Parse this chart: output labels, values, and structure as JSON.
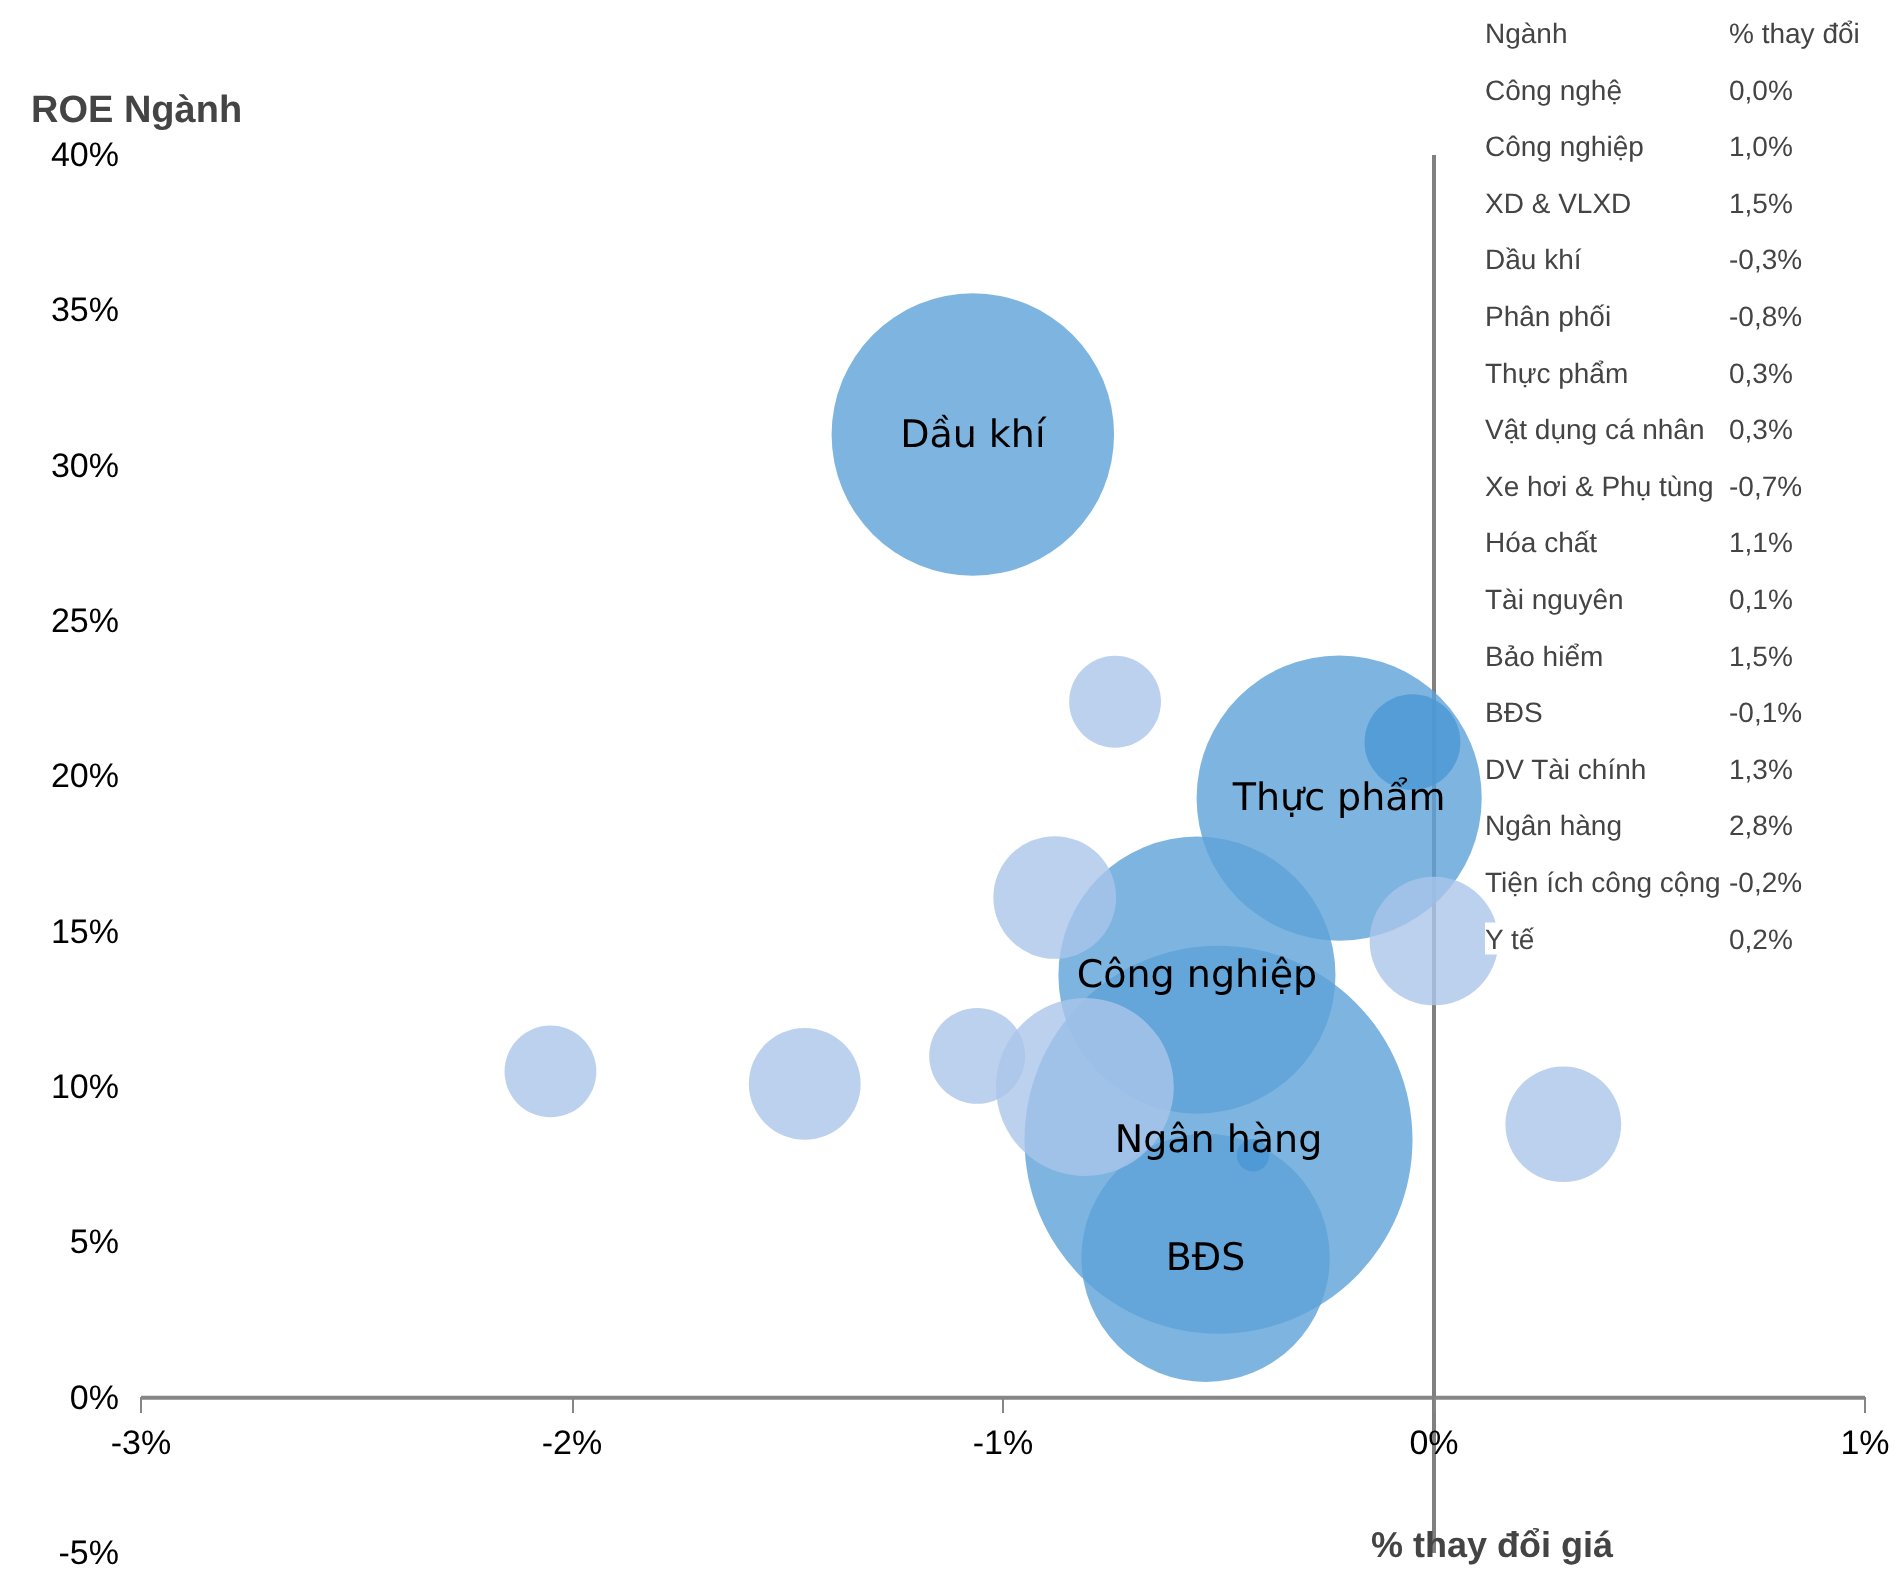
{
  "chart_data": {
    "type": "bubble",
    "xlabel": "% thay đổi giá",
    "ylabel": "ROE Ngành",
    "xlim": [
      -3,
      1
    ],
    "ylim": [
      -5,
      40
    ],
    "xticks": [
      {
        "value": -3,
        "label": "-3%"
      },
      {
        "value": -2,
        "label": "-2%"
      },
      {
        "value": -1,
        "label": "-1%"
      },
      {
        "value": 0,
        "label": "0%"
      },
      {
        "value": 1,
        "label": "1%"
      }
    ],
    "yticks": [
      {
        "value": -5,
        "label": "-5%"
      },
      {
        "value": 0,
        "label": "0%"
      },
      {
        "value": 5,
        "label": "5%"
      },
      {
        "value": 10,
        "label": "10%"
      },
      {
        "value": 15,
        "label": "15%"
      },
      {
        "value": 20,
        "label": "20%"
      },
      {
        "value": 25,
        "label": "25%"
      },
      {
        "value": 30,
        "label": "30%"
      },
      {
        "value": 35,
        "label": "35%"
      },
      {
        "value": 40,
        "label": "40%"
      }
    ],
    "grid": false,
    "ref_lines": [
      {
        "axis": "x",
        "value": 0,
        "color": "#808080"
      }
    ],
    "series": [
      {
        "color": "#aac5ea",
        "x": [
          -0.74,
          -0.88,
          0.0,
          -2.05,
          -1.46,
          -1.06,
          -0.81,
          0.3
        ],
        "values": [
          22.4,
          16.1,
          14.7,
          10.5,
          10.1,
          11.0,
          10.0,
          8.8
        ],
        "sizes": [
          0.056,
          0.1,
          0.11,
          0.056,
          0.083,
          0.061,
          0.21,
          0.089
        ]
      },
      {
        "color": "#4a97d4",
        "x": [
          -0.05,
          -0.42
        ],
        "values": [
          21.1,
          7.8
        ],
        "sizes": [
          0.061,
          0.007
        ]
      },
      {
        "name": "Ngân hàng",
        "color": "#5ea3d8",
        "x": [
          -0.5
        ],
        "values": [
          8.3
        ],
        "sizes": [
          1
        ]
      },
      {
        "name": "Thực phẩm",
        "color": "#5ea3d8",
        "x": [
          -0.22
        ],
        "values": [
          19.3
        ],
        "sizes": [
          0.54
        ]
      },
      {
        "name": "Dầu khí",
        "color": "#5ea3d8",
        "x": [
          -1.07
        ],
        "values": [
          31.0
        ],
        "sizes": [
          0.53
        ]
      },
      {
        "name": "Công nghiệp",
        "color": "#5ea3d8",
        "x": [
          -0.55
        ],
        "values": [
          13.6
        ],
        "sizes": [
          0.51
        ]
      },
      {
        "name": "BĐS",
        "color": "#5ea3d8",
        "x": [
          -0.53
        ],
        "values": [
          4.5
        ],
        "sizes": [
          0.41
        ]
      }
    ],
    "annotations": [
      "Ngành\t% thay đổi",
      "Công nghệ\t0,0%",
      "Công nghiệp\t1,0%",
      "XD & VLXD\t1,5%",
      "Dầu khí\t-0,3%",
      "Phân phối\t-0,8%",
      "Thực phẩm\t0,3%",
      "Vật dụng cá nhân\t0,3%",
      "Xe hơi & Phụ tùng\t-0,7%",
      "Hóa chất\t1,1%",
      "Tài nguyên\t0,1%",
      "Bảo hiểm\t1,5%",
      "BĐS\t-0,1%",
      "DV Tài chính\t1,3%",
      "Ngân hàng\t2,8%",
      "Tiện ích công cộng\t-0,2%",
      "Y tế\t0,2%"
    ]
  }
}
